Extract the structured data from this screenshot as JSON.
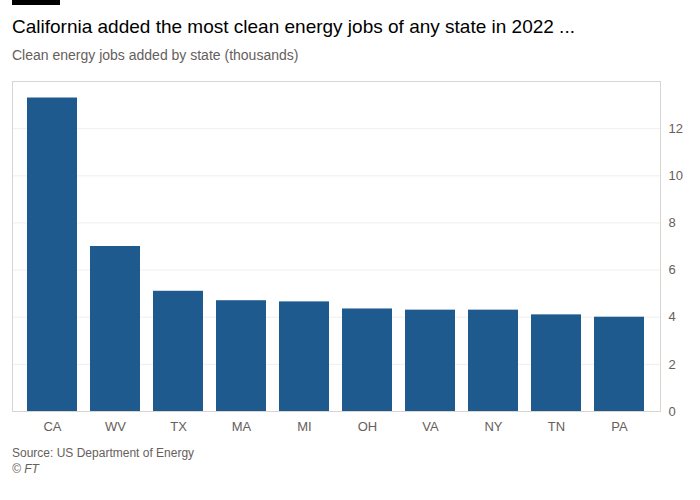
{
  "chart_data": {
    "type": "bar",
    "title": "California added the most clean energy jobs of any state in 2022 ...",
    "subtitle": "Clean energy jobs added by state (thousands)",
    "source": "Source: US Department of Energy",
    "credit": "© FT",
    "categories": [
      "CA",
      "WV",
      "TX",
      "MA",
      "MI",
      "OH",
      "VA",
      "NY",
      "TN",
      "PA"
    ],
    "values": [
      13.3,
      7.0,
      5.1,
      4.7,
      4.65,
      4.35,
      4.3,
      4.3,
      4.1,
      4.0
    ],
    "color": "#1f5a8f",
    "ylim": [
      0,
      14
    ],
    "yticks": [
      0,
      2,
      4,
      6,
      8,
      10,
      12
    ],
    "grid": true
  }
}
